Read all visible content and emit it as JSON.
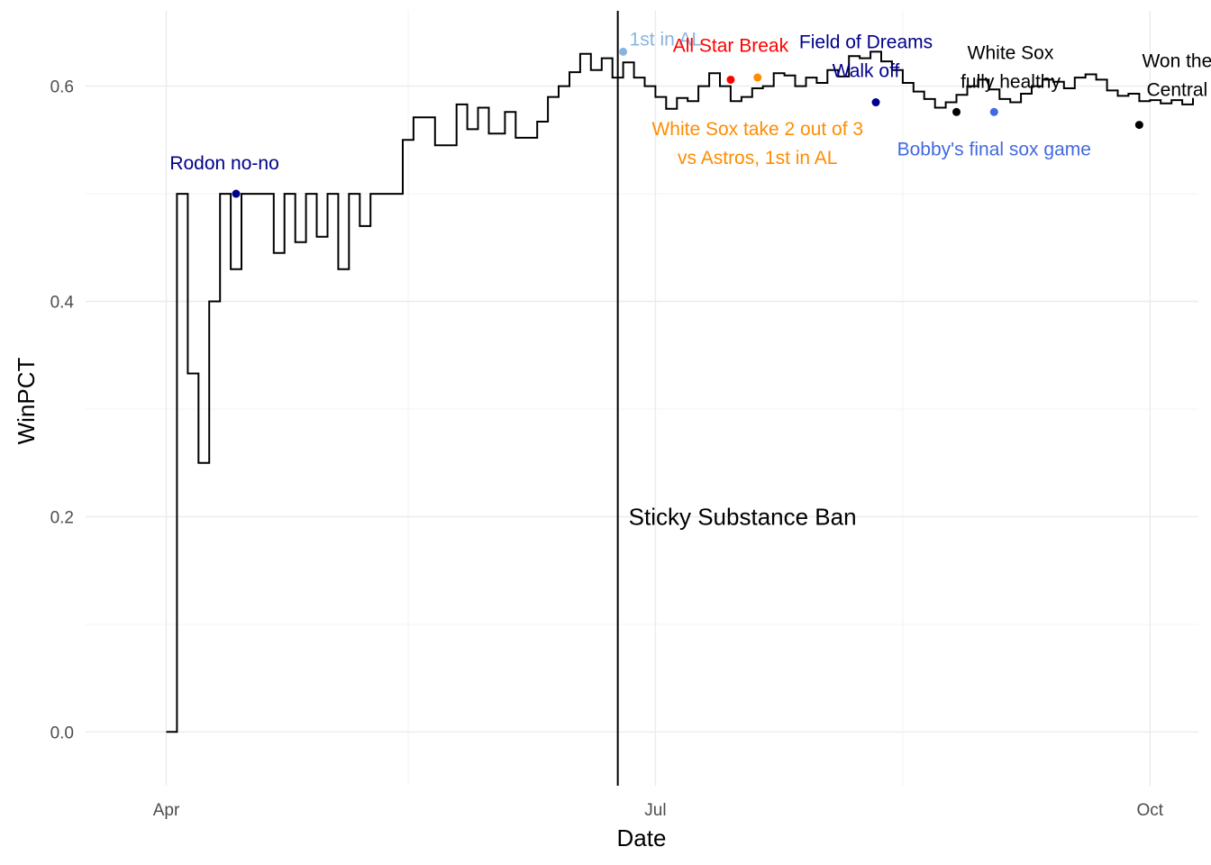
{
  "chart_data": {
    "type": "line",
    "line_style": "step",
    "xlabel": "Date",
    "ylabel": "WinPCT",
    "ylim": [
      -0.05,
      0.67
    ],
    "y_ticks": [
      0.0,
      0.2,
      0.4,
      0.6
    ],
    "y_tick_labels": [
      "0.0",
      "0.2",
      "0.4",
      "0.6"
    ],
    "x_ticks": [
      "2021-04-01",
      "2021-07-01",
      "2021-10-01"
    ],
    "x_tick_labels": [
      "Apr",
      "Jul",
      "Oct"
    ],
    "xlim": [
      "2021-03-17",
      "2021-10-10"
    ],
    "grid": true,
    "series": [
      {
        "color": "#000000",
        "points": [
          [
            "2021-04-01",
            0.0
          ],
          [
            "2021-04-03",
            0.5
          ],
          [
            "2021-04-05",
            0.333
          ],
          [
            "2021-04-07",
            0.25
          ],
          [
            "2021-04-09",
            0.4
          ],
          [
            "2021-04-11",
            0.5
          ],
          [
            "2021-04-13",
            0.43
          ],
          [
            "2021-04-15",
            0.5
          ],
          [
            "2021-04-17",
            0.5
          ],
          [
            "2021-04-21",
            0.445
          ],
          [
            "2021-04-23",
            0.5
          ],
          [
            "2021-04-25",
            0.455
          ],
          [
            "2021-04-27",
            0.5
          ],
          [
            "2021-04-29",
            0.46
          ],
          [
            "2021-05-01",
            0.5
          ],
          [
            "2021-05-03",
            0.43
          ],
          [
            "2021-05-05",
            0.5
          ],
          [
            "2021-05-07",
            0.47
          ],
          [
            "2021-05-09",
            0.5
          ],
          [
            "2021-05-13",
            0.5
          ],
          [
            "2021-05-15",
            0.55
          ],
          [
            "2021-05-17",
            0.571
          ],
          [
            "2021-05-21",
            0.545
          ],
          [
            "2021-05-25",
            0.583
          ],
          [
            "2021-05-27",
            0.56
          ],
          [
            "2021-05-29",
            0.58
          ],
          [
            "2021-05-31",
            0.556
          ],
          [
            "2021-06-03",
            0.576
          ],
          [
            "2021-06-05",
            0.552
          ],
          [
            "2021-06-09",
            0.567
          ],
          [
            "2021-06-11",
            0.59
          ],
          [
            "2021-06-13",
            0.6
          ],
          [
            "2021-06-15",
            0.613
          ],
          [
            "2021-06-17",
            0.63
          ],
          [
            "2021-06-19",
            0.615
          ],
          [
            "2021-06-21",
            0.626
          ],
          [
            "2021-06-23",
            0.608
          ],
          [
            "2021-06-25",
            0.622
          ],
          [
            "2021-06-27",
            0.608
          ],
          [
            "2021-06-29",
            0.6
          ],
          [
            "2021-07-01",
            0.59
          ],
          [
            "2021-07-03",
            0.579
          ],
          [
            "2021-07-05",
            0.589
          ],
          [
            "2021-07-07",
            0.586
          ],
          [
            "2021-07-09",
            0.6
          ],
          [
            "2021-07-11",
            0.612
          ],
          [
            "2021-07-13",
            0.6
          ],
          [
            "2021-07-15",
            0.586
          ],
          [
            "2021-07-17",
            0.59
          ],
          [
            "2021-07-19",
            0.598
          ],
          [
            "2021-07-21",
            0.6
          ],
          [
            "2021-07-23",
            0.612
          ],
          [
            "2021-07-25",
            0.61
          ],
          [
            "2021-07-27",
            0.6
          ],
          [
            "2021-07-29",
            0.608
          ],
          [
            "2021-07-31",
            0.603
          ],
          [
            "2021-08-02",
            0.615
          ],
          [
            "2021-08-04",
            0.609
          ],
          [
            "2021-08-06",
            0.628
          ],
          [
            "2021-08-08",
            0.626
          ],
          [
            "2021-08-10",
            0.632
          ],
          [
            "2021-08-12",
            0.623
          ],
          [
            "2021-08-14",
            0.615
          ],
          [
            "2021-08-16",
            0.603
          ],
          [
            "2021-08-18",
            0.595
          ],
          [
            "2021-08-20",
            0.588
          ],
          [
            "2021-08-22",
            0.58
          ],
          [
            "2021-08-24",
            0.585
          ],
          [
            "2021-08-26",
            0.592
          ],
          [
            "2021-08-28",
            0.6
          ],
          [
            "2021-08-30",
            0.606
          ],
          [
            "2021-09-01",
            0.597
          ],
          [
            "2021-09-03",
            0.588
          ],
          [
            "2021-09-05",
            0.585
          ],
          [
            "2021-09-07",
            0.593
          ],
          [
            "2021-09-09",
            0.6
          ],
          [
            "2021-09-11",
            0.606
          ],
          [
            "2021-09-13",
            0.604
          ],
          [
            "2021-09-15",
            0.598
          ],
          [
            "2021-09-17",
            0.608
          ],
          [
            "2021-09-19",
            0.611
          ],
          [
            "2021-09-21",
            0.606
          ],
          [
            "2021-09-23",
            0.596
          ],
          [
            "2021-09-25",
            0.591
          ],
          [
            "2021-09-27",
            0.593
          ],
          [
            "2021-09-29",
            0.586
          ],
          [
            "2021-10-01",
            0.587
          ],
          [
            "2021-10-03",
            0.584
          ],
          [
            "2021-10-05",
            0.587
          ],
          [
            "2021-10-07",
            0.583
          ],
          [
            "2021-10-09",
            0.589
          ]
        ]
      }
    ],
    "reference_lines": [
      {
        "date": "2021-06-24",
        "label": "Sticky Substance Ban",
        "color": "#000000"
      }
    ],
    "annotations": [
      {
        "date": "2021-04-14",
        "value": 0.5,
        "label_lines": [
          "Rodon no-no"
        ],
        "color": "#00008b",
        "anchor": "middle",
        "dx": -13,
        "dy": -27
      },
      {
        "date": "2021-06-25",
        "value": 0.632,
        "label_lines": [
          "1st in AL"
        ],
        "color": "#89b4e0",
        "anchor": "start",
        "dx": 7,
        "dy": -7
      },
      {
        "date": "2021-07-15",
        "value": 0.606,
        "label_lines": [
          "All Star Break"
        ],
        "color": "#ff0000",
        "anchor": "middle",
        "dx": 0,
        "dy": -31
      },
      {
        "date": "2021-07-20",
        "value": 0.608,
        "label_lines": [
          "White Sox take 2 out of 3",
          "vs Astros, 1st in AL"
        ],
        "color": "#ff8c00",
        "anchor": "middle",
        "dx": 0,
        "dy": 64
      },
      {
        "date": "2021-08-11",
        "value": 0.585,
        "label_lines": [
          "Field of Dreams",
          "Walk off"
        ],
        "color": "#00008b",
        "anchor": "middle",
        "dx": -11,
        "dy": -60
      },
      {
        "date": "2021-08-26",
        "value": 0.576,
        "label_lines": [
          "White Sox",
          "fully healthy"
        ],
        "color": "#000000",
        "anchor": "middle",
        "dx": 60,
        "dy": -59
      },
      {
        "date": "2021-09-02",
        "value": 0.576,
        "label_lines": [
          "Bobby's final sox game"
        ],
        "color": "#4169e1",
        "anchor": "middle",
        "dx": 0,
        "dy": 48
      },
      {
        "date": "2021-09-29",
        "value": 0.564,
        "label_lines": [
          "Won the",
          "Central"
        ],
        "color": "#000000",
        "anchor": "middle",
        "dx": 42,
        "dy": -64
      }
    ]
  }
}
